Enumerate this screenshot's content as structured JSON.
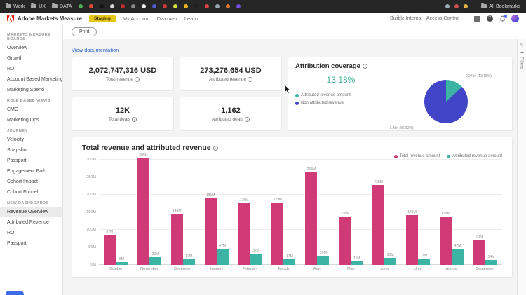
{
  "browser": {
    "bookmarks": [
      {
        "label": "Work"
      },
      {
        "label": "UX"
      },
      {
        "label": "DATA"
      }
    ],
    "favicon_colors": [
      "#4db153",
      "#e2493b",
      "#141414",
      "#d8d8d8",
      "#c92c2c",
      "#8a8a8a",
      "#f0f0f0",
      "#4a5cd0",
      "#d03a3a",
      "#cfe23a",
      "#e9b820",
      "#1d1d1d",
      "#d84444",
      "#9aa7af",
      "#e2792a",
      "#7a4de0"
    ],
    "right_favicon_colors": [
      "#9fb2bb",
      "#d05050",
      "#e2b24a"
    ],
    "all_bookmarks_label": "All Bookmarks"
  },
  "header": {
    "app_title": "Adobe Markets Measure",
    "env_badge": "Staging",
    "nav": [
      "My Account",
      "Discover",
      "Learn"
    ],
    "account_label": "Bizible Internal - Access Control"
  },
  "toolbar": {
    "print_label": "Print"
  },
  "sidebar": {
    "sections": [
      {
        "title": "MARKETS MEASURE BOARDS",
        "items": [
          "Overview",
          "Growth",
          "ROI",
          "Account Based Marketing",
          "Marketing Spend"
        ]
      },
      {
        "title": "ROLE BASED VIEWS",
        "items": [
          "CMO",
          "Marketing Ops"
        ]
      },
      {
        "title": "JOURNEY",
        "items": [
          "Velocity",
          "Snapshot",
          "Passport",
          "Engagement Path",
          "Cohort Impact",
          "Cohort Funnel"
        ]
      },
      {
        "title": "NEW DASHBOARDS",
        "items": [
          "Revenue Overview",
          "Attributed Revenue",
          "ROI",
          "Passport"
        ]
      }
    ],
    "selected": "Revenue Overview"
  },
  "main": {
    "doc_link": "View documentation",
    "kpis": [
      {
        "value": "2,072,747,316 USD",
        "label": "Total revenue"
      },
      {
        "value": "273,276,654 USD",
        "label": "Attributed revenue"
      },
      {
        "value": "12K",
        "label": "Total deals"
      },
      {
        "value": "1,162",
        "label": "Attributed deals"
      }
    ],
    "filters_rail": {
      "label": "Filters"
    }
  },
  "chart_data": [
    {
      "type": "pie",
      "title": "Attribution coverage",
      "percent_label": "13.18%",
      "slices": [
        {
          "label": "Attributed revenue amount",
          "value_label": "0.27bn (13.18%)",
          "percent": 13.18,
          "color": "#3cb4a4"
        },
        {
          "label": "Non attributed revenue",
          "value_label": "1.8bn (86.82%)",
          "percent": 86.82,
          "color": "#4345c9"
        }
      ],
      "legend_position": "left"
    },
    {
      "type": "bar",
      "title": "Total revenue and attributed revenue",
      "categories": [
        "October",
        "November",
        "December",
        "January",
        "February",
        "March",
        "April",
        "May",
        "June",
        "July",
        "August",
        "September"
      ],
      "series": [
        {
          "name": "Total revenue amount",
          "color": "#d03a76",
          "values": [
            87,
            305,
            146,
            191,
            176,
            179,
            264,
            138,
            228,
            142,
            139,
            73
          ]
        },
        {
          "name": "Attributed revenue amount",
          "color": "#3cb4a4",
          "values": [
            8,
            23,
            17,
            47,
            32,
            17,
            26,
            11,
            21,
            18,
            47,
            14
          ]
        }
      ],
      "unit": "M",
      "ylabel": "",
      "xlabel": "",
      "ylim": [
        0,
        300
      ],
      "yticks": [
        0,
        50,
        100,
        150,
        200,
        250,
        300
      ],
      "grid": true,
      "legend_position": "top-right"
    }
  ]
}
